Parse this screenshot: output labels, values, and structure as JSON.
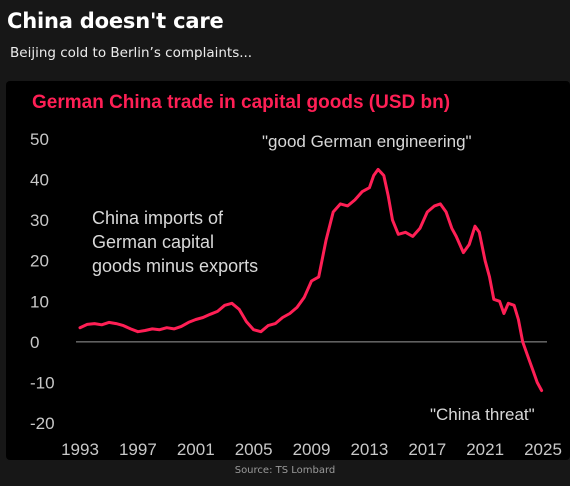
{
  "header": {
    "title": "China doesn't care",
    "subtitle": "Beijing cold to Berlin’s complaints..."
  },
  "footer": {
    "source": "Source: TS Lombard"
  },
  "colors": {
    "background": "#171717",
    "panel": "#000000",
    "accent": "#ff1f55",
    "text": "#ffffff",
    "axis_text": "#c8c8c8",
    "zero_line": "#9a9a9a"
  },
  "chart_data": {
    "type": "line",
    "title": "German China trade in capital goods (USD bn)",
    "series": [
      {
        "name": "China imports of German capital goods minus exports",
        "x": [
          1993.0,
          1993.5,
          1994.0,
          1994.5,
          1995.0,
          1995.5,
          1996.0,
          1996.5,
          1997.0,
          1997.5,
          1998.0,
          1998.5,
          1999.0,
          1999.5,
          2000.0,
          2000.5,
          2001.0,
          2001.5,
          2002.0,
          2002.5,
          2003.0,
          2003.5,
          2004.0,
          2004.5,
          2005.0,
          2005.5,
          2006.0,
          2006.5,
          2007.0,
          2007.5,
          2008.0,
          2008.5,
          2009.0,
          2009.5,
          2010.0,
          2010.5,
          2011.0,
          2011.5,
          2012.0,
          2012.5,
          2013.0,
          2013.3,
          2013.6,
          2014.0,
          2014.3,
          2014.6,
          2015.0,
          2015.5,
          2016.0,
          2016.5,
          2017.0,
          2017.5,
          2017.9,
          2018.3,
          2018.7,
          2019.0,
          2019.5,
          2019.9,
          2020.3,
          2020.6,
          2021.0,
          2021.3,
          2021.6,
          2022.0,
          2022.3,
          2022.6,
          2023.0,
          2023.3,
          2023.6,
          2024.0,
          2024.3,
          2024.6,
          2024.9
        ],
        "y": [
          3.5,
          4.3,
          4.5,
          4.2,
          4.8,
          4.5,
          4.0,
          3.2,
          2.5,
          2.8,
          3.2,
          3.0,
          3.5,
          3.2,
          3.8,
          4.8,
          5.5,
          6.0,
          6.8,
          7.5,
          9.0,
          9.5,
          8.0,
          5.0,
          3.0,
          2.5,
          4.0,
          4.5,
          6.0,
          7.0,
          8.5,
          11.0,
          15.0,
          16.0,
          25.0,
          32.0,
          34.0,
          33.5,
          35.0,
          37.0,
          38.0,
          41.0,
          42.5,
          41.0,
          36.0,
          30.0,
          26.5,
          27.0,
          26.0,
          28.0,
          32.0,
          33.5,
          34.0,
          32.0,
          28.0,
          26.0,
          22.0,
          24.0,
          28.5,
          27.0,
          20.0,
          16.0,
          10.5,
          10.0,
          7.0,
          9.5,
          9.0,
          5.5,
          0.0,
          -4.0,
          -7.0,
          -10.0,
          -12.0
        ]
      }
    ],
    "xlim": [
      1993,
      2025
    ],
    "ylim": [
      -20,
      50
    ],
    "xticks": [
      1993,
      1997,
      2001,
      2005,
      2009,
      2013,
      2017,
      2021,
      2025
    ],
    "yticks": [
      50,
      40,
      30,
      20,
      10,
      0,
      -10,
      -20
    ],
    "grid": false,
    "zero_line": true,
    "annotations": [
      {
        "text": "\"good German engineering\""
      },
      {
        "lines": [
          "China imports of",
          "German capital",
          "goods minus exports"
        ]
      },
      {
        "text": "\"China threat\""
      }
    ]
  }
}
